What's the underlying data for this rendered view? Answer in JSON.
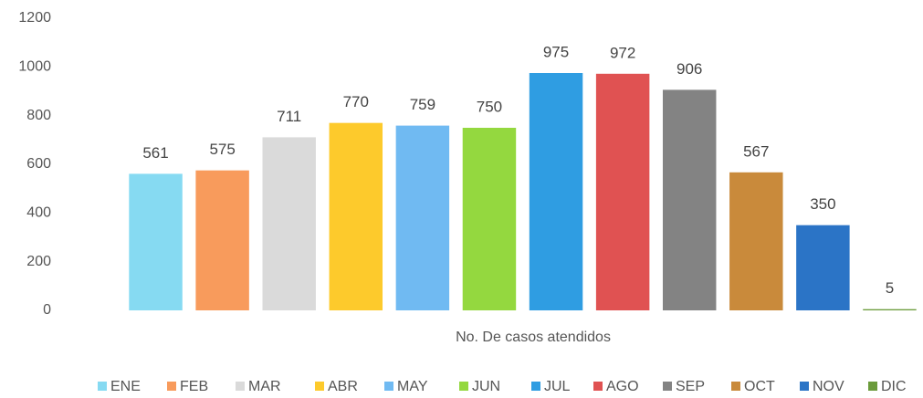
{
  "chart_data": {
    "type": "bar",
    "x_label": "No. De casos atendidos",
    "categories": [
      "ENE",
      "FEB",
      "MAR",
      "ABR",
      "MAY",
      "JUN",
      "JUL",
      "AGO",
      "SEP",
      "OCT",
      "NOV",
      "DIC"
    ],
    "values": [
      561,
      575,
      711,
      770,
      759,
      750,
      975,
      972,
      906,
      567,
      350,
      5
    ],
    "colors": [
      "#86daf2",
      "#f89b5c",
      "#dadada",
      "#fdca2c",
      "#70baf2",
      "#94d83f",
      "#2f9de2",
      "#e05252",
      "#838383",
      "#c98a3b",
      "#2b74c6",
      "#6b9b3b"
    ],
    "ylim": [
      0,
      1200
    ],
    "yticks": [
      0,
      200,
      400,
      600,
      800,
      1000,
      1200
    ],
    "grid": false,
    "legend": "bottom"
  }
}
